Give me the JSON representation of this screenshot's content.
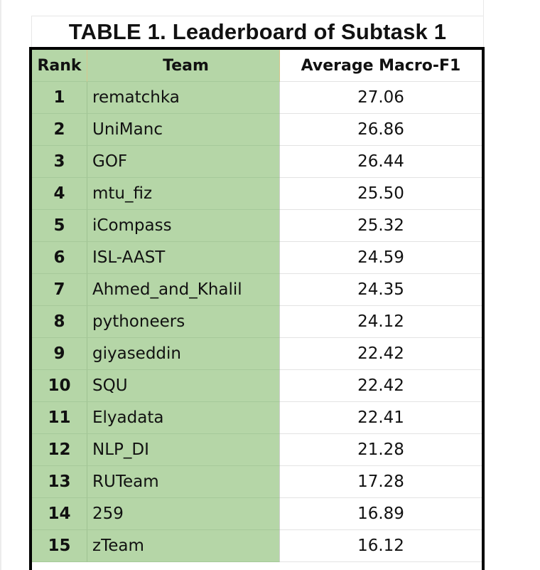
{
  "title": "TABLE 1. Leaderboard of Subtask 1",
  "columns": {
    "rank": "Rank",
    "team": "Team",
    "score": "Average Macro-F1"
  },
  "rows": [
    {
      "rank": "1",
      "team": "rematchka",
      "score": "27.06"
    },
    {
      "rank": "2",
      "team": "UniManc",
      "score": "26.86"
    },
    {
      "rank": "3",
      "team": "GOF",
      "score": "26.44"
    },
    {
      "rank": "4",
      "team": "mtu_fiz",
      "score": "25.50"
    },
    {
      "rank": "5",
      "team": "iCompass",
      "score": "25.32"
    },
    {
      "rank": "6",
      "team": "ISL-AAST",
      "score": "24.59"
    },
    {
      "rank": "7",
      "team": "Ahmed_and_Khalil",
      "score": "24.35"
    },
    {
      "rank": "8",
      "team": "pythoneers",
      "score": "24.12"
    },
    {
      "rank": "9",
      "team": "giyaseddin",
      "score": "22.42"
    },
    {
      "rank": "10",
      "team": "SQU",
      "score": "22.42"
    },
    {
      "rank": "11",
      "team": "Elyadata",
      "score": "22.41"
    },
    {
      "rank": "12",
      "team": "NLP_DI",
      "score": "21.28"
    },
    {
      "rank": "13",
      "team": "RUTeam",
      "score": "17.28"
    },
    {
      "rank": "14",
      "team": "259",
      "score": "16.89"
    },
    {
      "rank": "15",
      "team": "zTeam",
      "score": "16.12"
    }
  ],
  "colors": {
    "header_fill": "#fde59e",
    "green_fill": "#b5d6a7",
    "border": "#000000"
  }
}
